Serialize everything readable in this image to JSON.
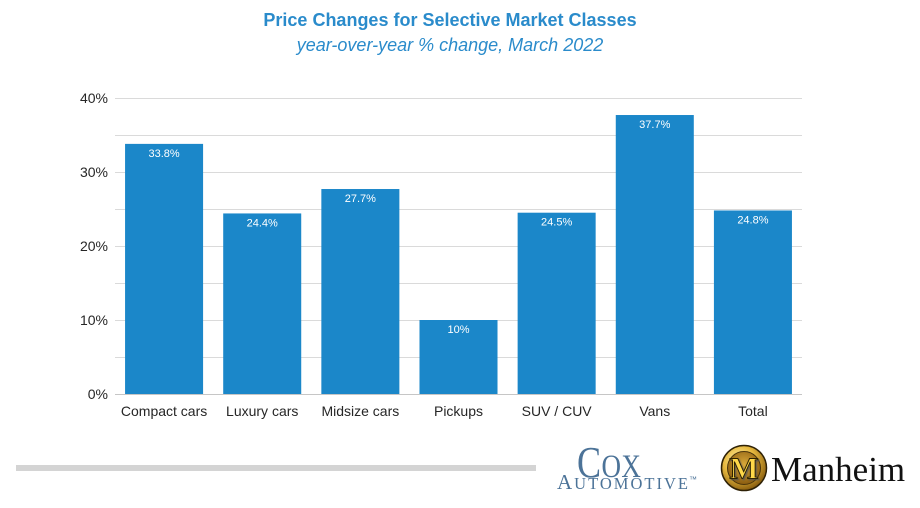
{
  "chart_data": {
    "type": "bar",
    "title": "Price Changes for Selective Market Classes",
    "subtitle": "year-over-year % change, March 2022",
    "categories": [
      "Compact cars",
      "Luxury cars",
      "Midsize cars",
      "Pickups",
      "SUV / CUV",
      "Vans",
      "Total"
    ],
    "values": [
      33.8,
      24.4,
      27.7,
      10,
      24.5,
      37.7,
      24.8
    ],
    "data_labels": [
      "33.8%",
      "24.4%",
      "27.7%",
      "10%",
      "24.5%",
      "37.7%",
      "24.8%"
    ],
    "ylim": [
      0,
      40
    ],
    "yticks": [
      0,
      10,
      20,
      30,
      40
    ],
    "ytick_labels": [
      "0%",
      "10%",
      "20%",
      "30%",
      "40%"
    ],
    "grid": true,
    "gridlines": [
      0,
      5,
      10,
      15,
      20,
      25,
      30,
      35,
      40
    ]
  },
  "colors": {
    "bar": "#1b87c9",
    "title": "#2a8bcb",
    "grid": "#dadada",
    "baseline": "#c6c6c6",
    "axis_text": "#262626",
    "data_label": "#ffffff",
    "divider": "#d4d4d4",
    "cox_logo": "#4c7398",
    "manheim_wordmark": "#111111"
  },
  "logos": {
    "cox_automotive": {
      "line1": "COX",
      "line2": "AUTOMOTIVE",
      "trademark": "™"
    },
    "manheim": {
      "emblem_letter": "M",
      "wordmark": "Manheim"
    }
  }
}
